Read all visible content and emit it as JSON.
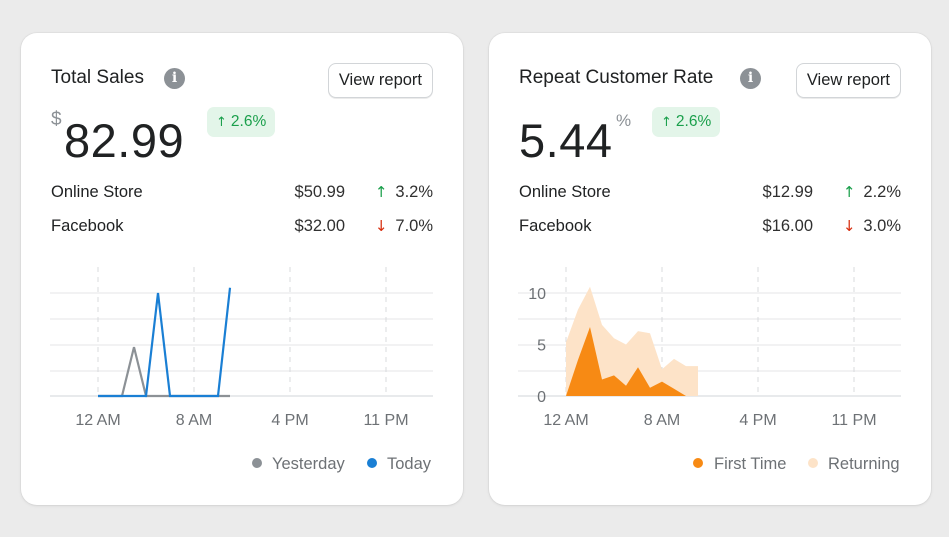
{
  "sales": {
    "title": "Total Sales",
    "info_icon": "i",
    "view_report": "View report",
    "currency": "$",
    "value": "82.99",
    "change": "2.6%",
    "channels": [
      {
        "name": "Online Store",
        "amount": "$50.99",
        "change": "3.2%",
        "direction": "up"
      },
      {
        "name": "Facebook",
        "amount": "$32.00",
        "change": "7.0%",
        "direction": "down"
      }
    ]
  },
  "repeat": {
    "title": "Repeat Customer Rate",
    "info_icon": "i",
    "view_report": "View report",
    "value": "5.44",
    "unit": "%",
    "change": "2.6%",
    "channels": [
      {
        "name": "Online Store",
        "amount": "$12.99",
        "change": "2.2%",
        "direction": "up"
      },
      {
        "name": "Facebook",
        "amount": "$16.00",
        "change": "3.0%",
        "direction": "down"
      }
    ]
  },
  "colors": {
    "up": "#1a9f4b",
    "down": "#d72c0d",
    "yesterday": "#8c9196",
    "today": "#1a7fd4",
    "first_time": "#f78a14",
    "returning": "#fde3c8"
  },
  "chart_data": [
    {
      "type": "line",
      "title": "Total Sales",
      "x_tick_labels": [
        "12 AM",
        "8 AM",
        "4 PM",
        "11 PM"
      ],
      "x_range": [
        0,
        24
      ],
      "y_range": [
        0,
        4
      ],
      "series": [
        {
          "name": "Yesterday",
          "x": [
            0,
            2,
            3,
            4,
            5,
            6,
            7,
            8,
            9,
            10,
            11
          ],
          "y": [
            0,
            0,
            1.9,
            0,
            0,
            0,
            0,
            0,
            0,
            0,
            0
          ]
        },
        {
          "name": "Today",
          "x": [
            0,
            4,
            5,
            6,
            7,
            8,
            9,
            10,
            11
          ],
          "y": [
            0,
            0,
            4.0,
            0,
            0,
            0,
            0,
            0,
            4.2
          ]
        }
      ],
      "legend": [
        "Yesterday",
        "Today"
      ],
      "legend_position": "bottom-right"
    },
    {
      "type": "area",
      "title": "Repeat Customer Rate",
      "x_tick_labels": [
        "12 AM",
        "8 AM",
        "4 PM",
        "11 PM"
      ],
      "y_tick_labels": [
        "0",
        "5",
        "10"
      ],
      "x_range": [
        0,
        24
      ],
      "y_range": [
        0,
        10
      ],
      "series": [
        {
          "name": "Returning",
          "x": [
            0,
            1,
            2,
            3,
            4,
            5,
            6,
            7,
            8,
            9,
            10,
            11
          ],
          "y": [
            5.2,
            8.4,
            10.6,
            6.9,
            5.6,
            5.0,
            6.3,
            6.1,
            2.6,
            3.6,
            2.9,
            2.9
          ]
        },
        {
          "name": "First Time",
          "x": [
            0,
            1,
            2,
            3,
            4,
            5,
            6,
            7,
            8,
            9,
            10
          ],
          "y": [
            0,
            3.5,
            6.7,
            1.6,
            2.0,
            1.0,
            2.8,
            0.8,
            1.4,
            0.7,
            0
          ]
        }
      ],
      "legend": [
        "First Time",
        "Returning"
      ],
      "legend_position": "bottom-right"
    }
  ]
}
